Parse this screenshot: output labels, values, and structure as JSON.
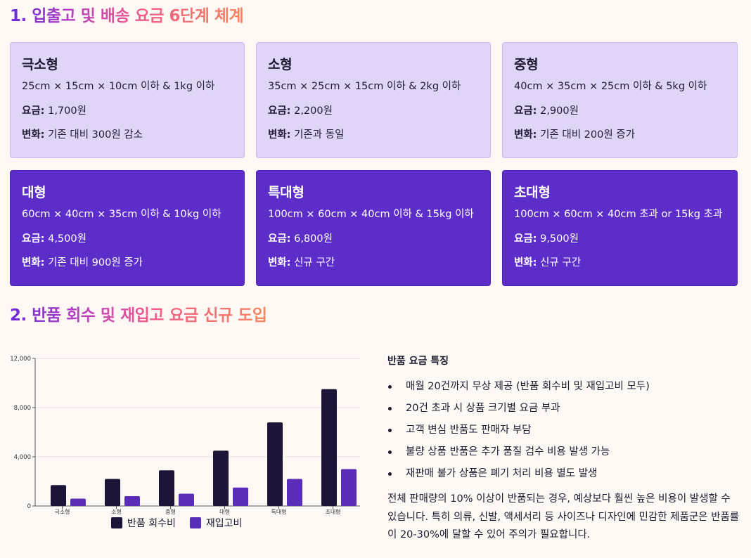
{
  "section1": {
    "title": "1. 입출고 및 배송 요금 6단계 체계"
  },
  "price_label": "요금:",
  "change_label": "변화:",
  "cards": [
    {
      "name": "극소형",
      "dims": "25cm × 15cm × 10cm 이하 & 1kg 이하",
      "price": "1,700원",
      "change": "기존 대비 300원 감소"
    },
    {
      "name": "소형",
      "dims": "35cm × 25cm × 15cm 이하 & 2kg 이하",
      "price": "2,200원",
      "change": "기존과 동일"
    },
    {
      "name": "중형",
      "dims": "40cm × 35cm × 25cm 이하 & 5kg 이하",
      "price": "2,900원",
      "change": "기존 대비 200원 증가"
    },
    {
      "name": "대형",
      "dims": "60cm × 40cm × 35cm 이하 & 10kg 이하",
      "price": "4,500원",
      "change": "기존 대비 900원 증가"
    },
    {
      "name": "특대형",
      "dims": "100cm × 60cm × 40cm 이하 & 15kg 이하",
      "price": "6,800원",
      "change": "신규 구간"
    },
    {
      "name": "초대형",
      "dims": "100cm × 60cm × 40cm 초과 or 15kg 초과",
      "price": "9,500원",
      "change": "신규 구간"
    }
  ],
  "section2": {
    "title": "2. 반품 회수 및 재입고 요금 신규 도입"
  },
  "chart_data": {
    "type": "bar",
    "categories": [
      "극소형",
      "소형",
      "중형",
      "대형",
      "특대형",
      "초대형"
    ],
    "series": [
      {
        "name": "반품 회수비",
        "values": [
          1700,
          2200,
          2900,
          4500,
          6800,
          9500
        ],
        "color": "#1e1438"
      },
      {
        "name": "재입고비",
        "values": [
          600,
          800,
          1000,
          1500,
          2200,
          3000
        ],
        "color": "#5a2db8"
      }
    ],
    "ylim": [
      0,
      12000
    ],
    "yticks": [
      0,
      4000,
      8000,
      12000
    ],
    "ytick_labels": [
      "0",
      "4,000",
      "8,000",
      "12,000"
    ],
    "grid": true,
    "legend": "bottom"
  },
  "side": {
    "heading": "반품 요금 특징",
    "bullets": [
      "매월 20건까지 무상 제공 (반품 회수비 및 재입고비 모두)",
      "20건 초과 시 상품 크기별 요금 부과",
      "고객 변심 반품도 판매자 부담",
      "불량 상품 반품은 추가 품질 검수 비용 발생 가능",
      "재판매 불가 상품은 폐기 처리 비용 별도 발생"
    ],
    "paragraph": "전체 판매량의 10% 이상이 반품되는 경우, 예상보다 훨씬 높은 비용이 발생할 수 있습니다. 특히 의류, 신발, 액세서리 등 사이즈나 디자인에 민감한 제품군은 반품률이 20-30%에 달할 수 있어 주의가 필요합니다."
  }
}
